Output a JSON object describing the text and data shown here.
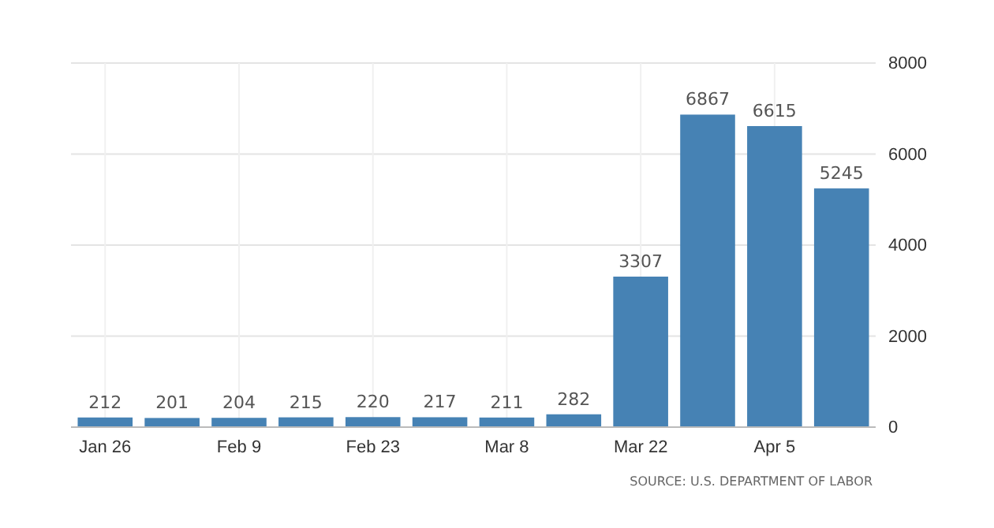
{
  "chart_data": {
    "type": "bar",
    "categories": [
      "Jan 26",
      null,
      "Feb 9",
      null,
      "Feb 23",
      null,
      "Mar 8",
      null,
      "Mar 22",
      null,
      "Apr 5",
      null
    ],
    "values": [
      212,
      201,
      204,
      215,
      220,
      217,
      211,
      282,
      3307,
      6867,
      6615,
      5245
    ],
    "color": "#4682b4",
    "ylim": [
      0,
      8000
    ],
    "yticks": [
      0,
      2000,
      4000,
      6000,
      8000
    ],
    "grid": true,
    "data_labels": true,
    "annotations": [
      "SOURCE: U.S. DEPARTMENT OF LABOR"
    ]
  }
}
